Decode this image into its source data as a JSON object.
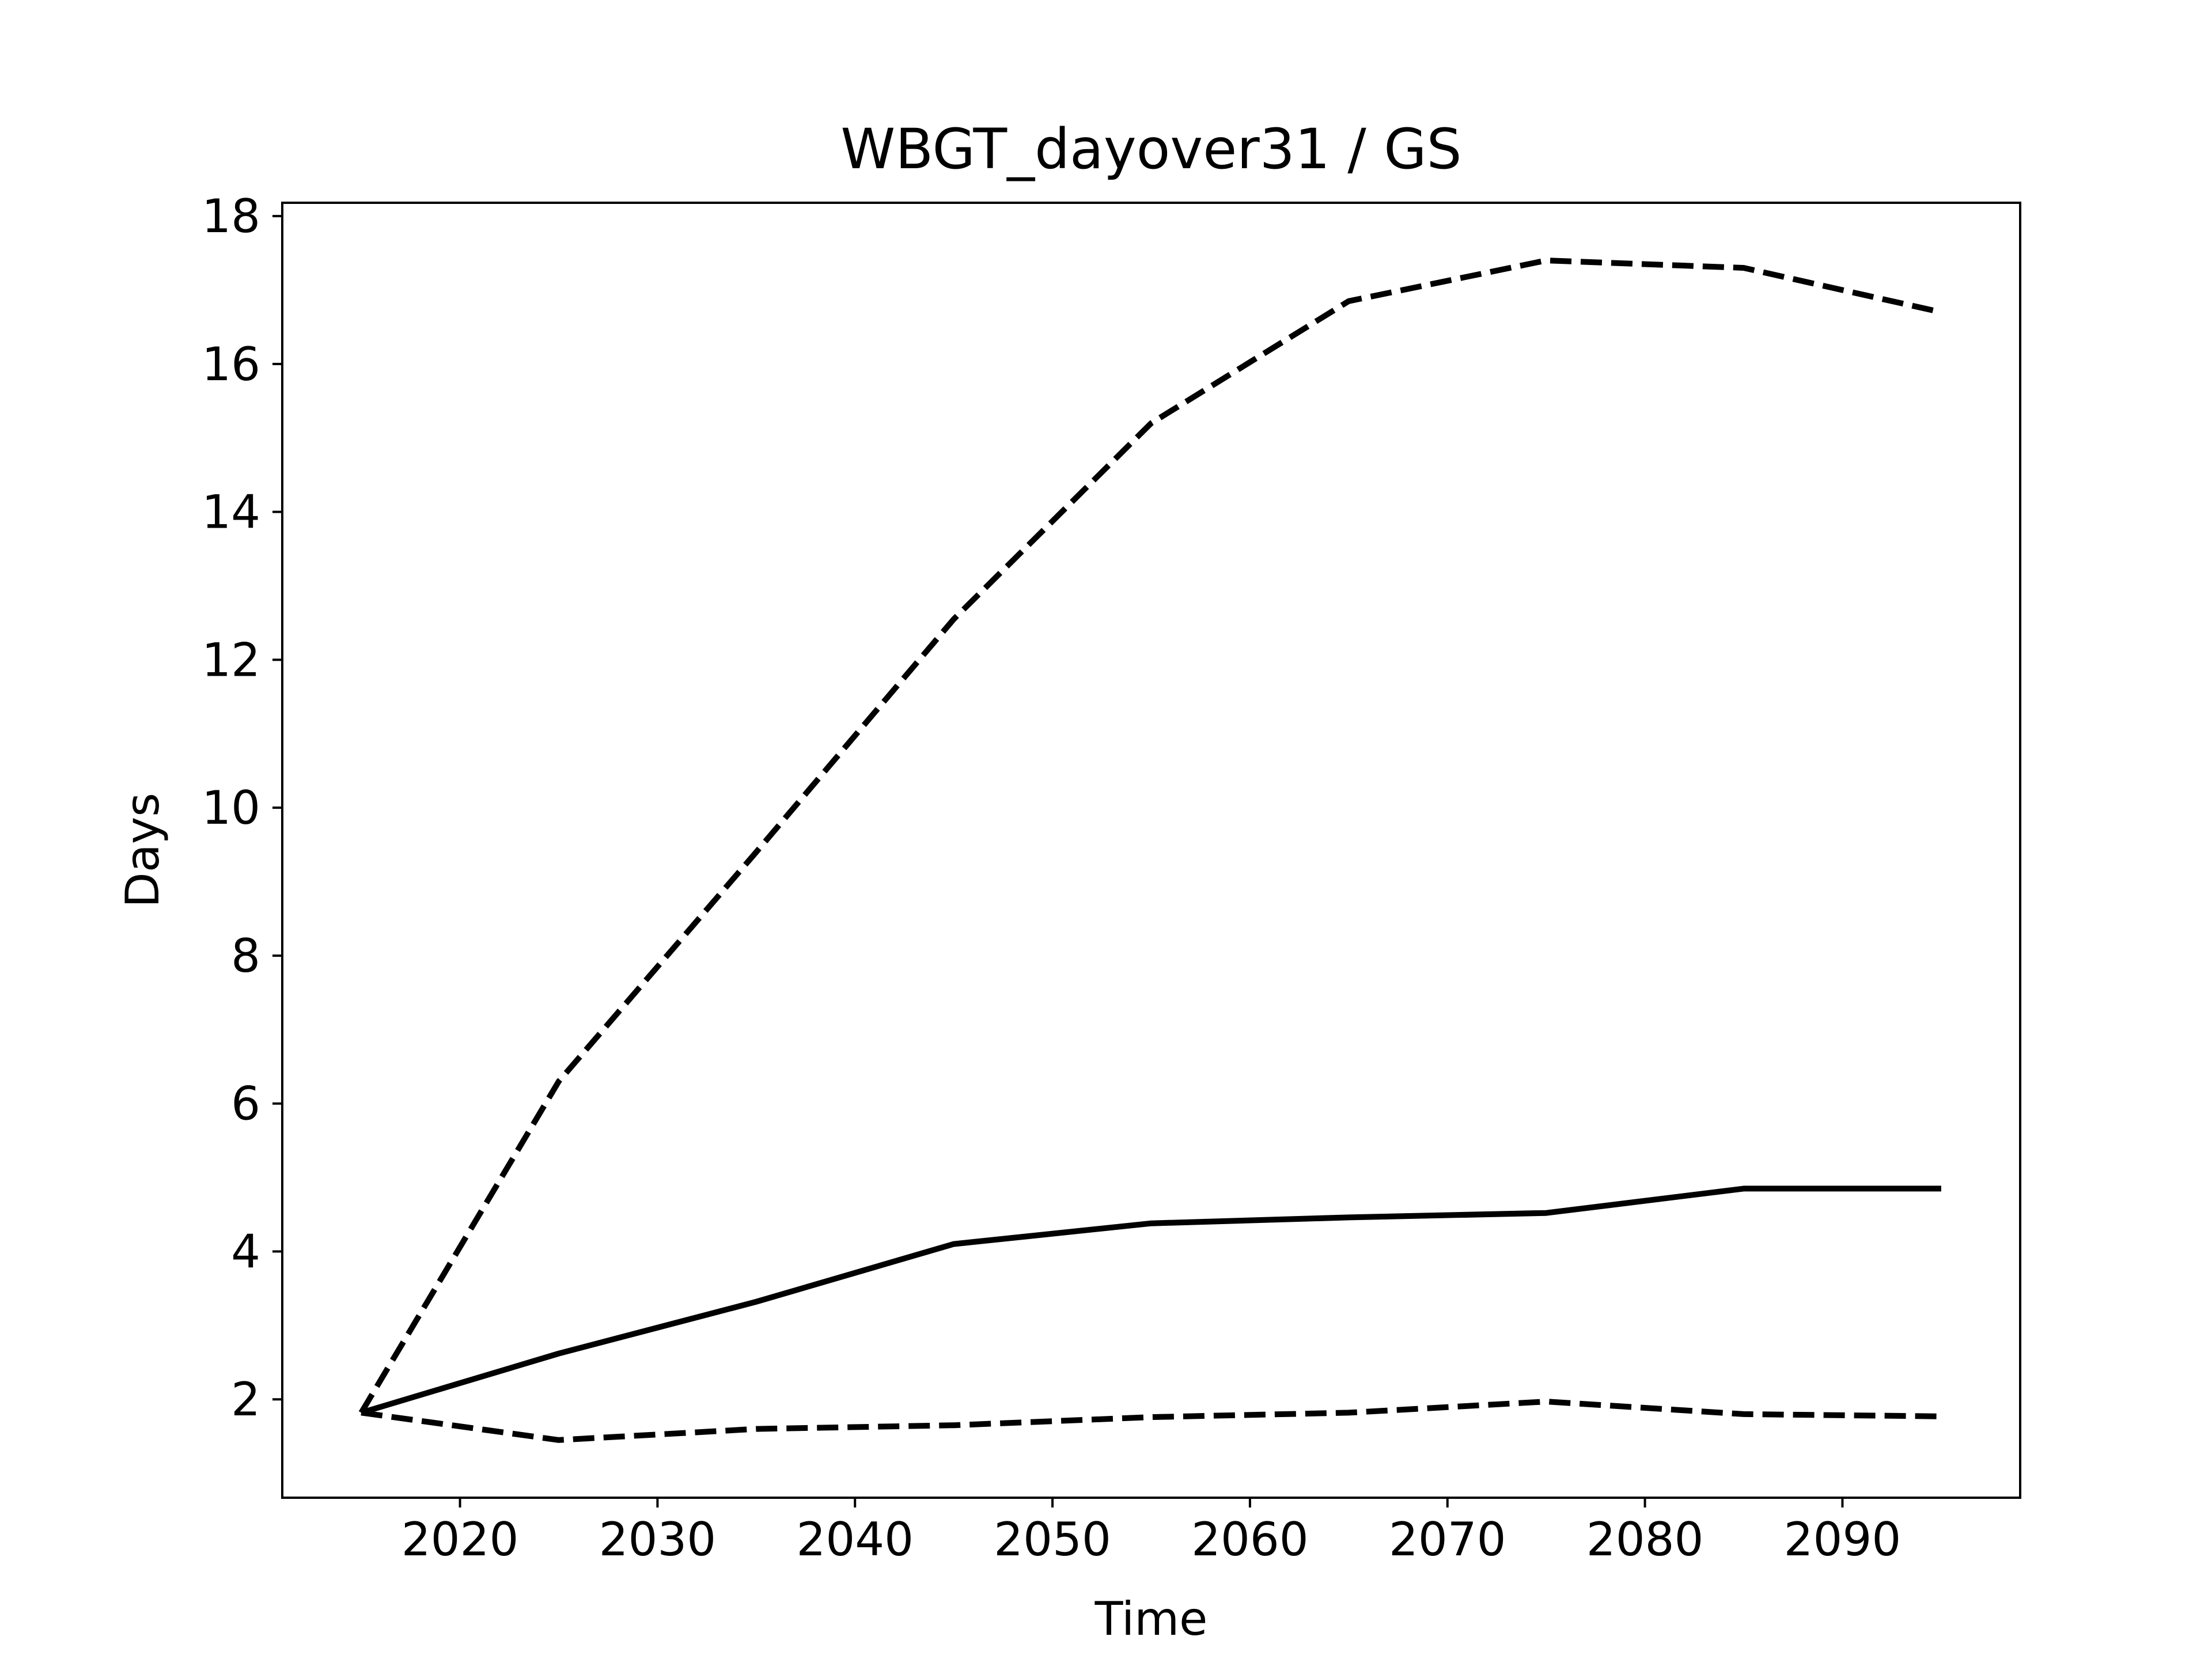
{
  "chart_data": {
    "type": "line",
    "title": "WBGT_dayover31 / GS",
    "xlabel": "Time",
    "ylabel": "Days",
    "x": [
      2015,
      2025,
      2035,
      2045,
      2055,
      2065,
      2075,
      2085,
      2095
    ],
    "series": [
      {
        "style": "solid",
        "color": "#000000",
        "values": [
          1.82,
          2.62,
          3.32,
          4.1,
          4.38,
          4.46,
          4.52,
          4.85,
          4.85
        ]
      },
      {
        "style": "dashed",
        "color": "#000000",
        "values": [
          1.82,
          6.3,
          9.4,
          12.55,
          15.2,
          16.85,
          17.4,
          17.3,
          16.7
        ]
      },
      {
        "style": "dashed",
        "color": "#000000",
        "values": [
          1.82,
          1.45,
          1.6,
          1.65,
          1.76,
          1.82,
          1.97,
          1.8,
          1.77
        ]
      }
    ],
    "xlim": [
      2011.0,
      2099.0
    ],
    "ylim": [
      0.67,
      18.18
    ],
    "xticks": [
      2020,
      2030,
      2040,
      2050,
      2060,
      2070,
      2080,
      2090
    ],
    "xtick_labels": [
      "2020",
      "2030",
      "2040",
      "2050",
      "2060",
      "2070",
      "2080",
      "2090"
    ],
    "yticks": [
      2,
      4,
      6,
      8,
      10,
      12,
      14,
      16,
      18
    ],
    "ytick_labels": [
      "2",
      "4",
      "6",
      "8",
      "10",
      "12",
      "14",
      "16",
      "18"
    ],
    "grid": false,
    "legend": "none"
  }
}
